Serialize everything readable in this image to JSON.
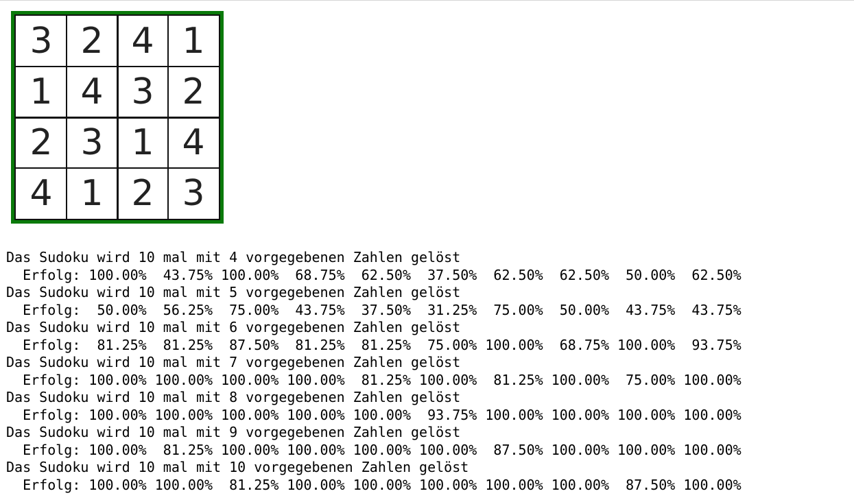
{
  "sudoku": {
    "grid": [
      [
        "3",
        "2",
        "4",
        "1"
      ],
      [
        "1",
        "4",
        "3",
        "2"
      ],
      [
        "2",
        "3",
        "1",
        "4"
      ],
      [
        "4",
        "1",
        "2",
        "3"
      ]
    ],
    "border_color": "#0a7a0a"
  },
  "output": {
    "lines": [
      "Das Sudoku wird 10 mal mit 4 vorgegebenen Zahlen gelöst",
      "  Erfolg: 100.00%  43.75% 100.00%  68.75%  62.50%  37.50%  62.50%  62.50%  50.00%  62.50%",
      "Das Sudoku wird 10 mal mit 5 vorgegebenen Zahlen gelöst",
      "  Erfolg:  50.00%  56.25%  75.00%  43.75%  37.50%  31.25%  75.00%  50.00%  43.75%  43.75%",
      "Das Sudoku wird 10 mal mit 6 vorgegebenen Zahlen gelöst",
      "  Erfolg:  81.25%  81.25%  87.50%  81.25%  81.25%  75.00% 100.00%  68.75% 100.00%  93.75%",
      "Das Sudoku wird 10 mal mit 7 vorgegebenen Zahlen gelöst",
      "  Erfolg: 100.00% 100.00% 100.00% 100.00%  81.25% 100.00%  81.25% 100.00%  75.00% 100.00%",
      "Das Sudoku wird 10 mal mit 8 vorgegebenen Zahlen gelöst",
      "  Erfolg: 100.00% 100.00% 100.00% 100.00% 100.00%  93.75% 100.00% 100.00% 100.00% 100.00%",
      "Das Sudoku wird 10 mal mit 9 vorgegebenen Zahlen gelöst",
      "  Erfolg: 100.00%  81.25% 100.00% 100.00% 100.00% 100.00%  87.50% 100.00% 100.00% 100.00%",
      "Das Sudoku wird 10 mal mit 10 vorgegebenen Zahlen gelöst",
      "  Erfolg: 100.00% 100.00%  81.25% 100.00% 100.00% 100.00% 100.00% 100.00%  87.50% 100.00%"
    ]
  }
}
